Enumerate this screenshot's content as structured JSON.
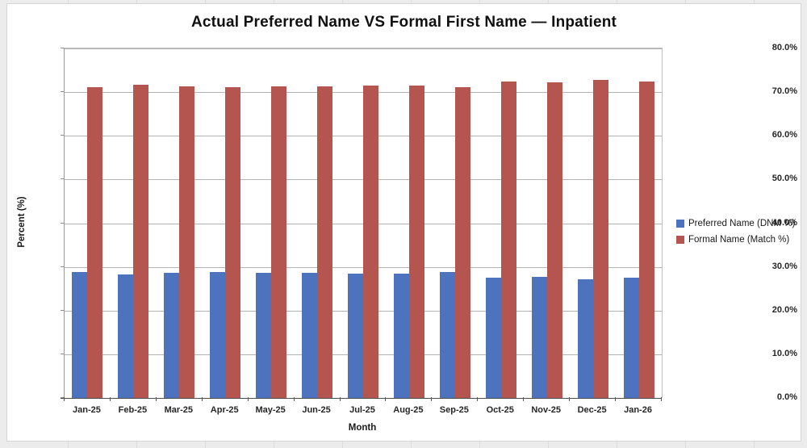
{
  "chart_data": {
    "type": "bar",
    "title": "Actual Preferred Name VS Formal First Name — Inpatient",
    "xlabel": "Month",
    "ylabel": "Percent (%)",
    "ylim": [
      0,
      80
    ],
    "ytick_step": 10,
    "ytick_format": "0.0%",
    "grid": true,
    "legend_position": "right",
    "categories": [
      "Jan-25",
      "Feb-25",
      "Mar-25",
      "Apr-25",
      "May-25",
      "Jun-25",
      "Jul-25",
      "Aug-25",
      "Sep-25",
      "Oct-25",
      "Nov-25",
      "Dec-25",
      "Jan-26"
    ],
    "series": [
      {
        "name": "Preferred Name (DNM %)",
        "color": "#4D72BE",
        "values": [
          28.9,
          28.3,
          28.6,
          28.8,
          28.6,
          28.6,
          28.5,
          28.5,
          28.9,
          27.6,
          27.7,
          27.2,
          27.6
        ]
      },
      {
        "name": "Formal Name (Match %)",
        "color": "#B5554F",
        "values": [
          71.1,
          71.7,
          71.4,
          71.2,
          71.4,
          71.4,
          71.5,
          71.5,
          71.1,
          72.4,
          72.3,
          72.8,
          72.4
        ]
      }
    ]
  }
}
